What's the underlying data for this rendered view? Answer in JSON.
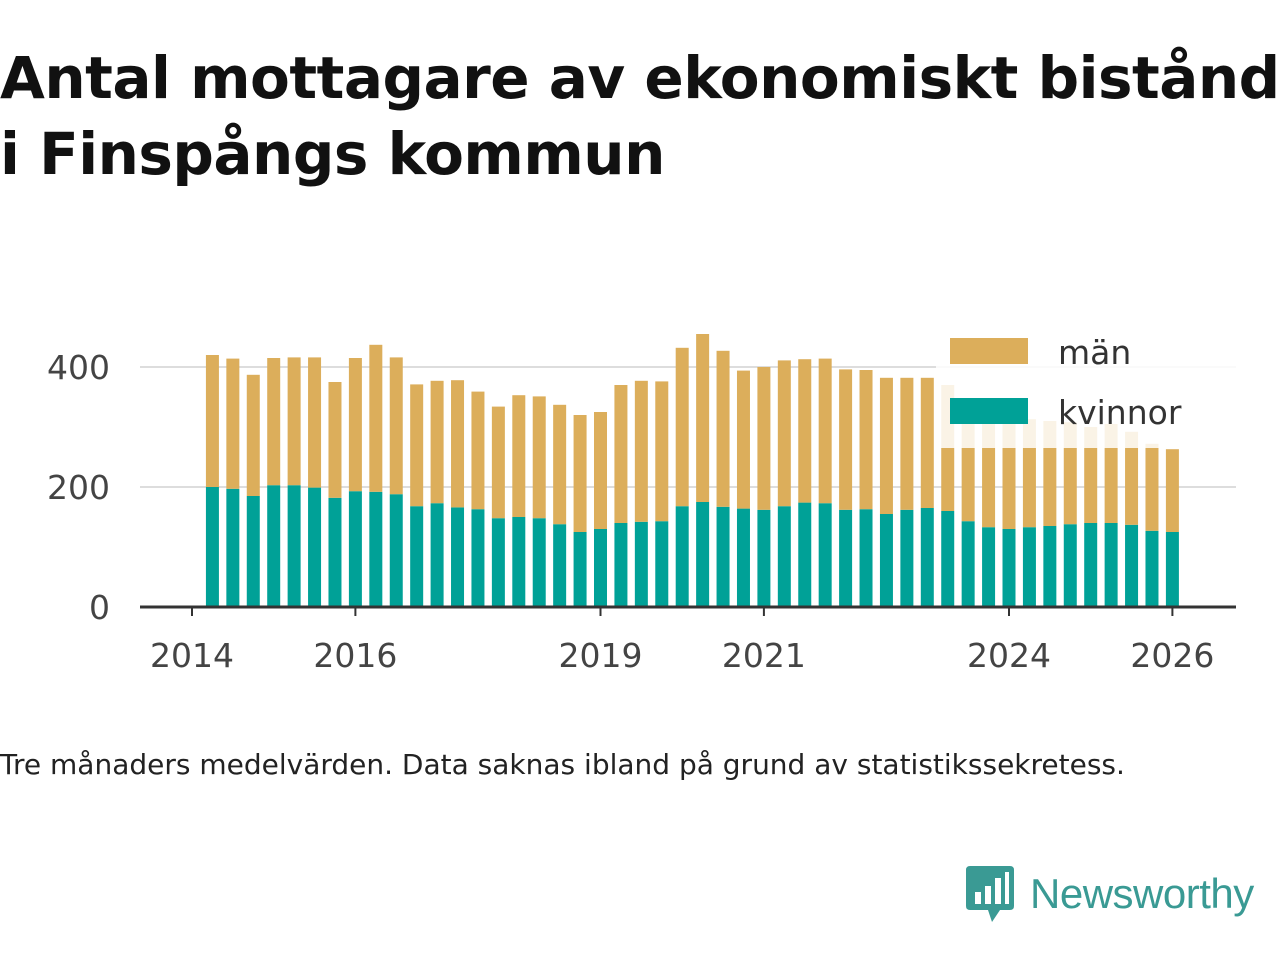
{
  "title_lines": [
    "Antal mottagare av ekonomiskt bistånd",
    "i Finspångs kommun"
  ],
  "note": "Tre månaders medelvärden. Data saknas ibland på grund av statistikssekretess.",
  "brand": {
    "name": "Newsworthy",
    "icon": "newsworthy-chart-bubble-icon",
    "color": "#3a9a94"
  },
  "chart_data": {
    "type": "bar",
    "stacked": true,
    "title": "Antal mottagare av ekonomiskt bistånd i Finspångs kommun",
    "xlabel": "",
    "ylabel": "",
    "ylim": [
      0,
      450
    ],
    "y_ticks": [
      0,
      200,
      400
    ],
    "x_ticks": [
      2014,
      2016,
      2019,
      2021,
      2024,
      2026
    ],
    "grid": true,
    "legend_position": "top-right",
    "x_unit": "quarter-start (year + quarter index/4)",
    "x": [
      2014.25,
      2014.5,
      2014.75,
      2015.0,
      2015.25,
      2015.5,
      2015.75,
      2016.0,
      2016.25,
      2016.5,
      2016.75,
      2017.0,
      2017.25,
      2017.5,
      2017.75,
      2018.0,
      2018.25,
      2018.5,
      2018.75,
      2019.0,
      2019.25,
      2019.5,
      2019.75,
      2020.0,
      2020.25,
      2020.5,
      2020.75,
      2021.0,
      2021.25,
      2021.5,
      2021.75,
      2022.0,
      2022.25,
      2022.5,
      2022.75,
      2023.0,
      2023.25,
      2023.5,
      2023.75,
      2024.0,
      2024.25,
      2024.5,
      2024.75,
      2025.0,
      2025.25,
      2025.5,
      2025.75,
      2026.0
    ],
    "series": [
      {
        "name": "kvinnor",
        "color": "#00a197",
        "values": [
          200,
          197,
          185,
          203,
          203,
          199,
          182,
          193,
          192,
          188,
          168,
          173,
          166,
          163,
          148,
          150,
          148,
          138,
          125,
          130,
          140,
          142,
          143,
          168,
          175,
          167,
          164,
          162,
          168,
          174,
          173,
          162,
          163,
          155,
          162,
          165,
          160,
          143,
          133,
          130,
          133,
          135,
          138,
          140,
          140,
          137,
          127,
          125
        ]
      },
      {
        "name": "män",
        "color": "#dcae5b",
        "values": [
          220,
          217,
          202,
          212,
          213,
          217,
          193,
          222,
          245,
          228,
          203,
          204,
          212,
          196,
          186,
          203,
          203,
          199,
          195,
          195,
          230,
          235,
          233,
          264,
          280,
          260,
          230,
          238,
          243,
          239,
          241,
          234,
          232,
          227,
          220,
          217,
          210,
          195,
          180,
          175,
          180,
          175,
          170,
          160,
          165,
          155,
          145,
          138
        ]
      }
    ]
  }
}
